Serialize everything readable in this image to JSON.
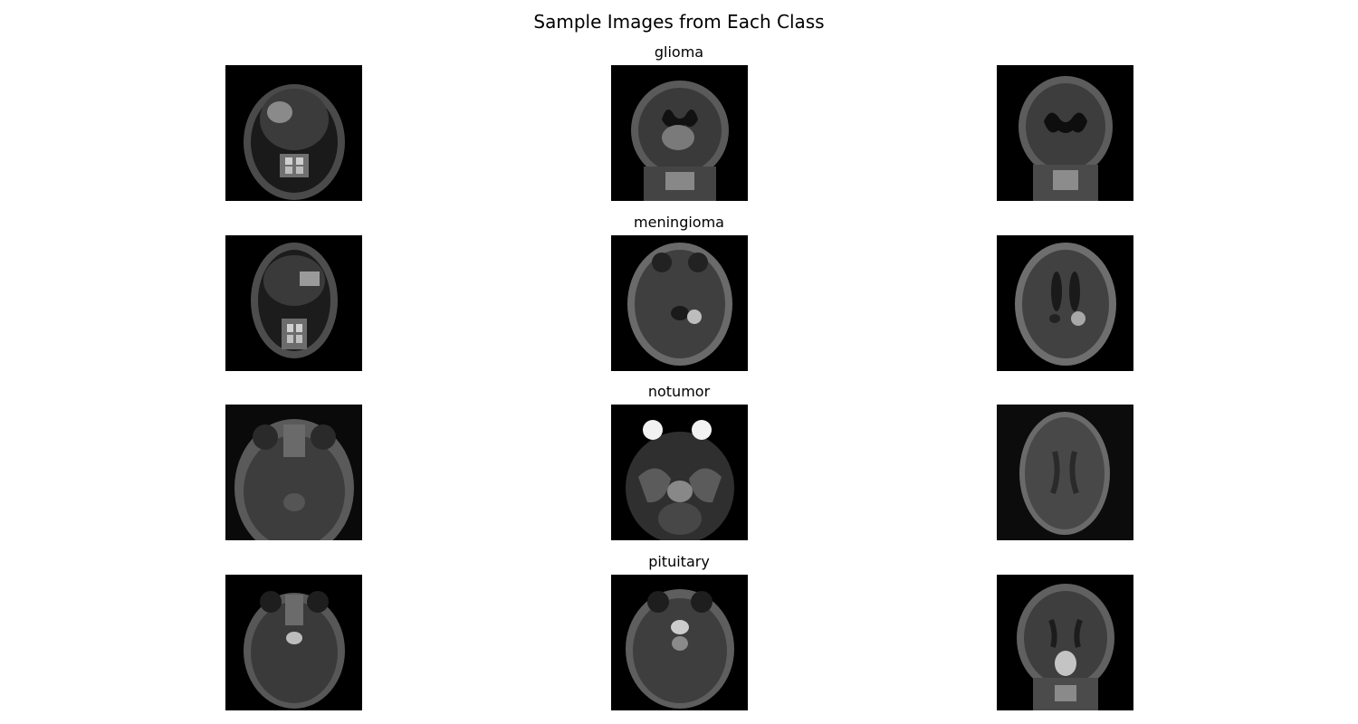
{
  "figure": {
    "title": "Sample Images from Each Class"
  },
  "rows": [
    {
      "label": "glioma"
    },
    {
      "label": "meningioma"
    },
    {
      "label": "notumor"
    },
    {
      "label": "pituitary"
    }
  ]
}
